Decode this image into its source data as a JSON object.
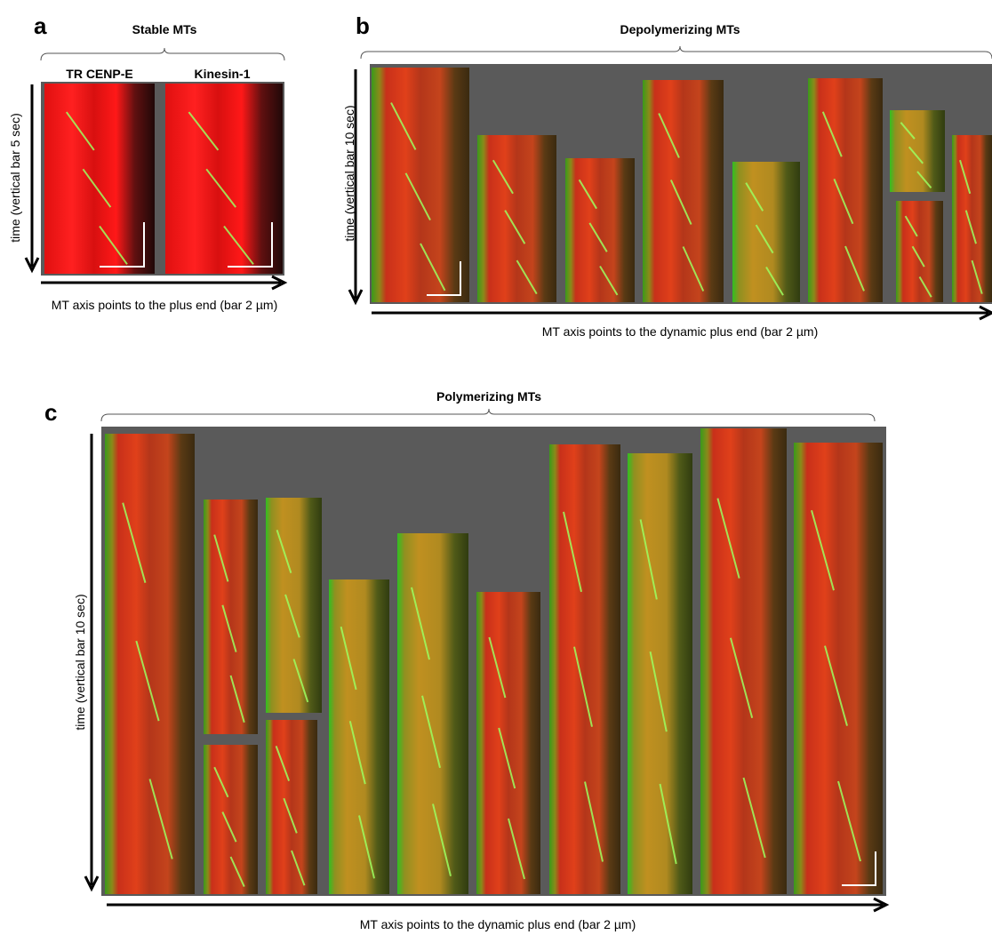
{
  "panels": [
    {
      "letter": "a",
      "title": "Stable MTs",
      "columns": [
        "TR CENP-E",
        "Kinesin-1"
      ],
      "y_axis": "time (vertical bar 5 sec)",
      "x_axis": "MT axis points to the plus end (bar 2 µm)"
    },
    {
      "letter": "b",
      "title": "Depolymerizing MTs",
      "y_axis": "time (vertical bar 10 sec)",
      "x_axis": "MT axis points to the dynamic plus end (bar 2 µm)"
    },
    {
      "letter": "c",
      "title": "Polymerizing MTs",
      "y_axis": "time (vertical bar 10 sec)",
      "x_axis": "MT axis points to the dynamic plus end (bar 2 µm)"
    }
  ]
}
